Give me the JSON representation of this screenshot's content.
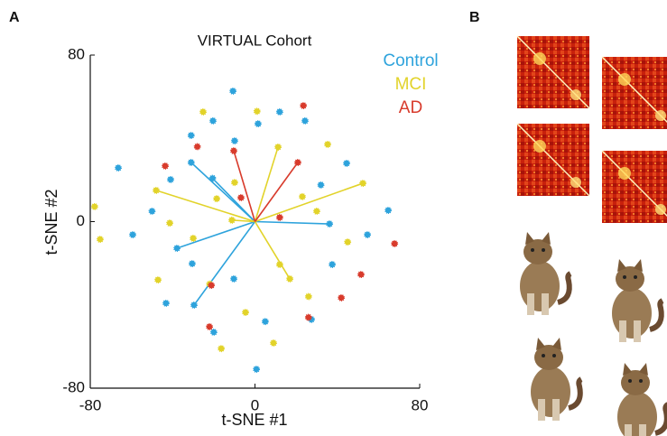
{
  "panel_labels": [
    "A",
    "B"
  ],
  "chart_data": {
    "type": "scatter",
    "title": "VIRTUAL Cohort",
    "x_label": "t-SNE #1",
    "y_label": "t-SNE #2",
    "xlim": [
      -80,
      80
    ],
    "xticks": [
      -80,
      0,
      80
    ],
    "ylim": [
      -80,
      80
    ],
    "yticks": [
      -80,
      0,
      80
    ],
    "series": [
      {
        "name": "Control",
        "color": "#2ea3dc",
        "x": [
          -10.7,
          12,
          -20.4,
          1.5,
          24.3,
          -31,
          -9.9,
          -66.4,
          -31,
          44.5,
          -41,
          32,
          64.7,
          36.2,
          -59.4,
          54.6,
          -37.9,
          -30.5,
          37.5,
          -10.3,
          -43.2,
          27.4,
          -29.6,
          -20,
          0.7,
          -20.6,
          -50,
          5
        ],
        "y": [
          62.7,
          52.7,
          48.4,
          47,
          48.4,
          41.4,
          38.8,
          25.8,
          28.4,
          28,
          20.2,
          17.6,
          5.4,
          -1.1,
          -6.3,
          -6.3,
          -12.8,
          -20.2,
          -20.6,
          -27.5,
          -39.2,
          -47,
          -40.1,
          -53.1,
          -70.9,
          20.8,
          5,
          -48
        ]
      },
      {
        "name": "MCI",
        "color": "#e2d32a",
        "x": [
          -25.2,
          11.2,
          35.3,
          -48,
          -77.9,
          -75.2,
          52.4,
          -11.2,
          -18.6,
          -41.4,
          23,
          16.9,
          45,
          12,
          -47.1,
          -9.9,
          -16.4,
          9,
          -4.6,
          1,
          -30,
          26,
          -22,
          30
        ],
        "y": [
          52.7,
          35.8,
          37.1,
          15,
          7.2,
          -8.5,
          18.4,
          0.7,
          11,
          -0.7,
          12,
          -27.5,
          -9.8,
          -20.6,
          -28,
          18.8,
          -61,
          -58.3,
          -43.6,
          53,
          -8,
          -36,
          -30,
          5
        ]
      },
      {
        "name": "AD",
        "color": "#d83b2c",
        "x": [
          23.5,
          -10.3,
          -43.6,
          20.8,
          -6.8,
          -21.2,
          51.5,
          67.8,
          -22.1,
          41.9,
          -28,
          26,
          12
        ],
        "y": [
          55.7,
          34,
          26.7,
          28.4,
          11.5,
          -30.6,
          -25.4,
          -10.6,
          -50.5,
          -36.6,
          36,
          -46,
          2
        ]
      }
    ],
    "vectors": [
      {
        "color": "#2ea3dc",
        "x": [
          -31,
          36.2,
          -37.9,
          -29.6,
          -20.6
        ],
        "y": [
          28.4,
          -1.1,
          -12.8,
          -40.1,
          20.8
        ]
      },
      {
        "color": "#e2d32a",
        "x": [
          -48,
          52.4,
          11.2,
          16.9,
          -11.2
        ],
        "y": [
          15,
          18.4,
          35.8,
          -27.5,
          0.7
        ]
      },
      {
        "color": "#d83b2c",
        "x": [
          20.8,
          -10.3
        ],
        "y": [
          28.4,
          34
        ]
      }
    ],
    "legend": "top-right"
  }
}
